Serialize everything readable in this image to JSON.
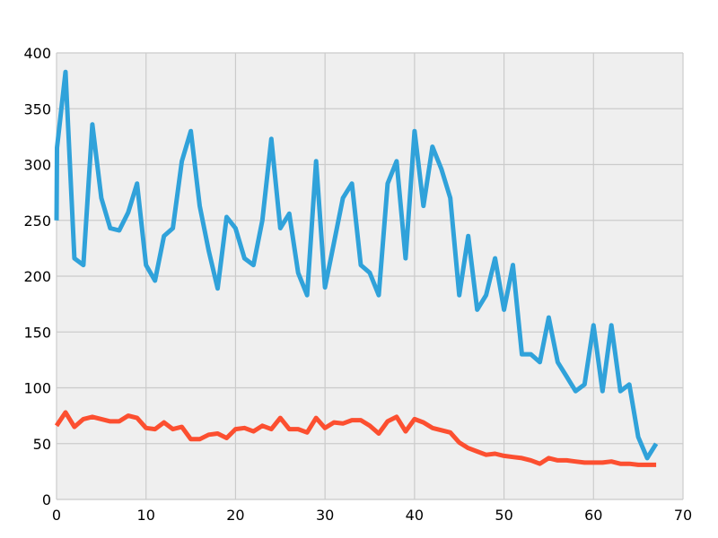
{
  "chart_data": {
    "type": "line",
    "title": "",
    "xlabel": "",
    "ylabel": "",
    "xlim": [
      0,
      70
    ],
    "ylim": [
      0,
      400
    ],
    "x_ticks": [
      0,
      10,
      20,
      30,
      40,
      50,
      60,
      70
    ],
    "y_ticks": [
      0,
      50,
      100,
      150,
      200,
      250,
      300,
      350,
      400
    ],
    "x_tick_labels": [
      "0",
      "10",
      "20",
      "30",
      "40",
      "50",
      "60",
      "70"
    ],
    "y_tick_labels": [
      "0",
      "50",
      "100",
      "150",
      "200",
      "250",
      "300",
      "350",
      "400"
    ],
    "grid": true,
    "legend": "none",
    "background_color": "#efefef",
    "grid_color": "#cbcbcb",
    "series": [
      {
        "color": "#30a2da",
        "x": [
          0,
          0.05,
          1,
          2,
          3,
          4,
          5,
          6,
          7,
          8,
          9,
          10,
          11,
          12,
          13,
          14,
          15,
          16,
          17,
          18,
          19,
          20,
          21,
          22,
          23,
          24,
          25,
          26,
          27,
          28,
          29,
          30,
          31,
          32,
          33,
          34,
          35,
          36,
          37,
          38,
          39,
          40,
          41,
          42,
          43,
          44,
          45,
          46,
          47,
          48,
          49,
          50,
          51,
          52,
          53,
          54,
          55,
          56,
          57,
          58,
          59,
          60,
          61,
          62,
          63,
          64,
          65,
          66,
          67
        ],
        "y": [
          250,
          315,
          383,
          216,
          210,
          336,
          270,
          243,
          241,
          257,
          283,
          210,
          196,
          236,
          243,
          303,
          330,
          263,
          223,
          189,
          253,
          243,
          216,
          210,
          250,
          323,
          243,
          256,
          203,
          183,
          303,
          190,
          230,
          270,
          283,
          210,
          203,
          183,
          283,
          303,
          216,
          330,
          263,
          316,
          296,
          270,
          183,
          236,
          170,
          183,
          216,
          170,
          210,
          130,
          130,
          123,
          163,
          123,
          110,
          97,
          103,
          156,
          97,
          156,
          97,
          103,
          56,
          37,
          50
        ]
      },
      {
        "color": "#fc4f30",
        "x": [
          0,
          1,
          2,
          3,
          4,
          5,
          6,
          7,
          8,
          9,
          10,
          11,
          12,
          13,
          14,
          15,
          16,
          17,
          18,
          19,
          20,
          21,
          22,
          23,
          24,
          25,
          26,
          27,
          28,
          29,
          30,
          31,
          32,
          33,
          34,
          35,
          36,
          37,
          38,
          39,
          40,
          41,
          42,
          43,
          44,
          45,
          46,
          47,
          48,
          49,
          50,
          51,
          52,
          53,
          54,
          55,
          56,
          57,
          58,
          59,
          60,
          61,
          62,
          63,
          64,
          65,
          66,
          67
        ],
        "y": [
          66,
          78,
          65,
          72,
          74,
          72,
          70,
          70,
          75,
          73,
          64,
          63,
          69,
          63,
          65,
          54,
          54,
          58,
          59,
          55,
          63,
          64,
          61,
          66,
          63,
          73,
          63,
          63,
          60,
          73,
          64,
          69,
          68,
          71,
          71,
          66,
          59,
          70,
          74,
          61,
          72,
          69,
          64,
          62,
          60,
          51,
          46,
          43,
          40,
          41,
          39,
          38,
          37,
          35,
          32,
          37,
          35,
          35,
          34,
          33,
          33,
          33,
          34,
          32,
          32,
          31,
          31,
          31
        ]
      }
    ]
  }
}
